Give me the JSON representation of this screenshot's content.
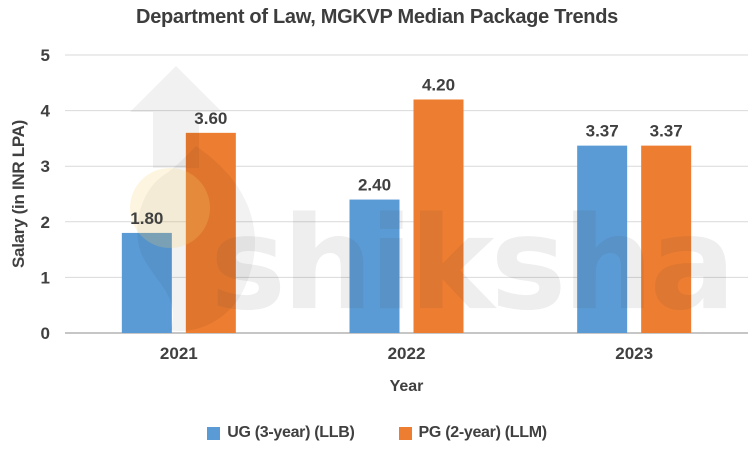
{
  "title": "Department of Law, MGKVP Median Package Trends",
  "watermark": {
    "text": "shiksha"
  },
  "chart_data": {
    "type": "bar",
    "title": "Department of Law, MGKVP Median Package Trends",
    "categories": [
      "2021",
      "2022",
      "2023"
    ],
    "series": [
      {
        "name": "UG (3-year) (LLB)",
        "color": "#5B9BD5",
        "values": [
          1.8,
          2.4,
          3.37
        ]
      },
      {
        "name": "PG (2-year) (LLM)",
        "color": "#ED7D31",
        "values": [
          3.6,
          4.2,
          3.37
        ]
      }
    ],
    "data_labels": [
      [
        "1.80",
        "2.40",
        "3.37"
      ],
      [
        "3.60",
        "4.20",
        "3.37"
      ]
    ],
    "xlabel": "Year",
    "ylabel": "Salary (in INR LPA)",
    "ylim": [
      0,
      5
    ],
    "yticks": [
      0,
      1,
      2,
      3,
      4,
      5
    ],
    "grid": true,
    "legend_position": "bottom"
  },
  "colors": {
    "text": "#404040",
    "title_text": "#3d3d3d",
    "gridline": "#D9D9D9",
    "axis_line": "#C6C6C6",
    "background": "#FFFFFF",
    "bar_blue": "#5B9BD5",
    "bar_orange": "#ED7D31",
    "watermark_fill": "rgba(60,60,60,0.085)"
  }
}
